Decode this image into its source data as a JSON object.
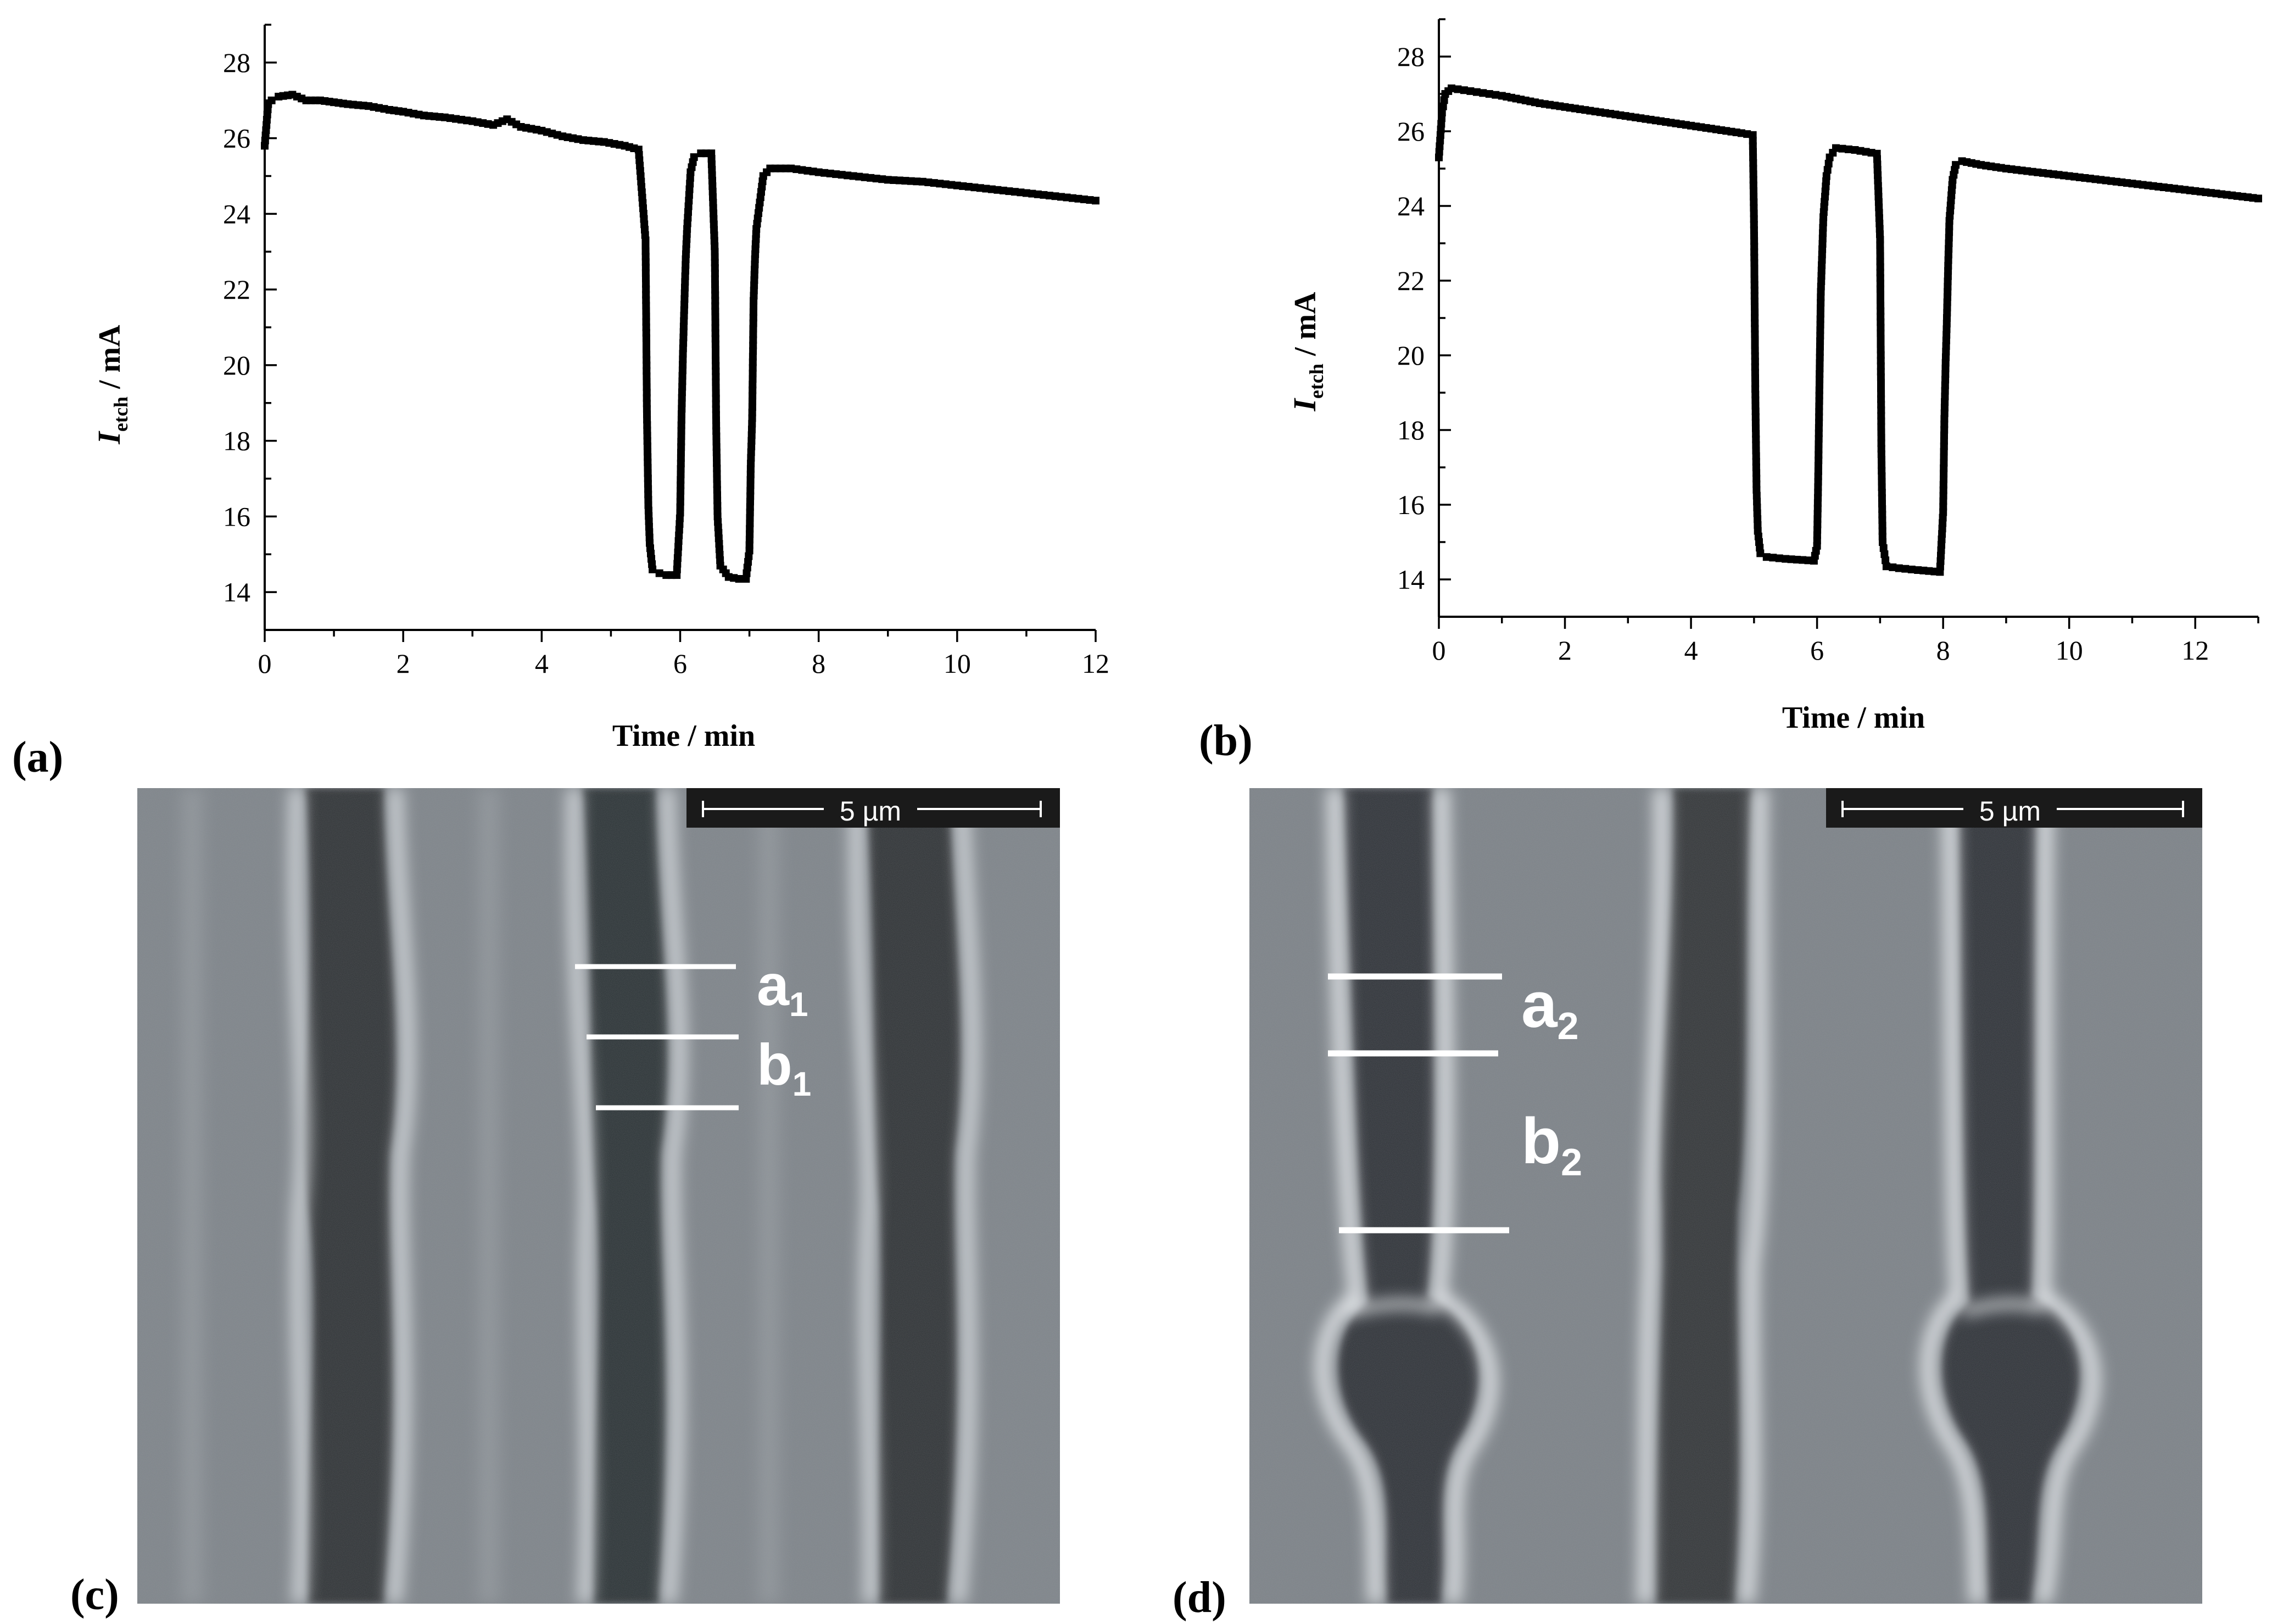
{
  "chart_data": [
    {
      "panel_label": "(a)",
      "type": "scatter",
      "xlabel": "Time / min",
      "ylabel_main": "I",
      "ylabel_sub": "etch",
      "ylabel_unit": " / mA",
      "xlim": [
        0,
        12
      ],
      "ylim": [
        13,
        29
      ],
      "xticks": [
        0,
        2,
        4,
        6,
        8,
        10,
        12
      ],
      "yticks": [
        14,
        16,
        18,
        20,
        22,
        24,
        26,
        28
      ],
      "series": [
        {
          "marker": "square",
          "points": [
            [
              0.0,
              25.8
            ],
            [
              0.05,
              26.9
            ],
            [
              0.1,
              27.0
            ],
            [
              0.2,
              27.1
            ],
            [
              0.4,
              27.15
            ],
            [
              0.6,
              27.0
            ],
            [
              0.8,
              27.0
            ],
            [
              1.0,
              26.95
            ],
            [
              1.2,
              26.9
            ],
            [
              1.5,
              26.85
            ],
            [
              1.8,
              26.75
            ],
            [
              2.0,
              26.7
            ],
            [
              2.3,
              26.6
            ],
            [
              2.6,
              26.55
            ],
            [
              3.0,
              26.45
            ],
            [
              3.3,
              26.35
            ],
            [
              3.5,
              26.5
            ],
            [
              3.7,
              26.3
            ],
            [
              4.0,
              26.2
            ],
            [
              4.3,
              26.05
            ],
            [
              4.6,
              25.95
            ],
            [
              4.9,
              25.9
            ],
            [
              5.2,
              25.8
            ],
            [
              5.4,
              25.7
            ],
            [
              5.5,
              23.3
            ],
            [
              5.52,
              18.7
            ],
            [
              5.54,
              16.3
            ],
            [
              5.56,
              15.3
            ],
            [
              5.6,
              14.6
            ],
            [
              5.7,
              14.5
            ],
            [
              5.8,
              14.45
            ],
            [
              5.95,
              14.45
            ],
            [
              6.0,
              16.1
            ],
            [
              6.02,
              18.7
            ],
            [
              6.04,
              20.3
            ],
            [
              6.06,
              21.6
            ],
            [
              6.08,
              22.8
            ],
            [
              6.1,
              23.6
            ],
            [
              6.15,
              25.1
            ],
            [
              6.2,
              25.5
            ],
            [
              6.3,
              25.6
            ],
            [
              6.45,
              25.6
            ],
            [
              6.5,
              23.0
            ],
            [
              6.52,
              18.4
            ],
            [
              6.54,
              16.0
            ],
            [
              6.58,
              14.7
            ],
            [
              6.7,
              14.4
            ],
            [
              6.85,
              14.35
            ],
            [
              6.95,
              14.35
            ],
            [
              7.0,
              15.1
            ],
            [
              7.02,
              17.4
            ],
            [
              7.04,
              18.6
            ],
            [
              7.06,
              21.7
            ],
            [
              7.08,
              22.8
            ],
            [
              7.1,
              23.6
            ],
            [
              7.15,
              24.3
            ],
            [
              7.2,
              25.0
            ],
            [
              7.3,
              25.2
            ],
            [
              7.6,
              25.2
            ],
            [
              8.0,
              25.1
            ],
            [
              8.5,
              25.0
            ],
            [
              9.0,
              24.9
            ],
            [
              9.5,
              24.85
            ],
            [
              10.0,
              24.75
            ],
            [
              10.5,
              24.65
            ],
            [
              11.0,
              24.55
            ],
            [
              11.5,
              24.45
            ],
            [
              12.0,
              24.35
            ]
          ]
        }
      ]
    },
    {
      "panel_label": "(b)",
      "type": "scatter",
      "xlabel": "Time / min",
      "ylabel_main": "I",
      "ylabel_sub": "etch",
      "ylabel_unit": " / mA",
      "xlim": [
        0,
        13
      ],
      "ylim": [
        13,
        29
      ],
      "xticks": [
        0,
        2,
        4,
        6,
        8,
        10,
        12
      ],
      "yticks": [
        14,
        16,
        18,
        20,
        22,
        24,
        26,
        28
      ],
      "series": [
        {
          "marker": "square",
          "points": [
            [
              0.0,
              25.3
            ],
            [
              0.05,
              26.5
            ],
            [
              0.1,
              27.0
            ],
            [
              0.2,
              27.15
            ],
            [
              0.4,
              27.1
            ],
            [
              0.6,
              27.05
            ],
            [
              0.8,
              27.0
            ],
            [
              1.0,
              26.95
            ],
            [
              1.3,
              26.85
            ],
            [
              1.6,
              26.75
            ],
            [
              2.0,
              26.65
            ],
            [
              2.4,
              26.55
            ],
            [
              2.8,
              26.45
            ],
            [
              3.2,
              26.35
            ],
            [
              3.6,
              26.25
            ],
            [
              4.0,
              26.15
            ],
            [
              4.4,
              26.05
            ],
            [
              4.8,
              25.95
            ],
            [
              4.98,
              25.9
            ],
            [
              5.0,
              23.5
            ],
            [
              5.02,
              19.1
            ],
            [
              5.04,
              16.4
            ],
            [
              5.06,
              15.3
            ],
            [
              5.1,
              14.7
            ],
            [
              5.2,
              14.6
            ],
            [
              5.5,
              14.55
            ],
            [
              5.95,
              14.5
            ],
            [
              6.0,
              14.9
            ],
            [
              6.02,
              16.9
            ],
            [
              6.04,
              19.5
            ],
            [
              6.06,
              21.7
            ],
            [
              6.08,
              22.7
            ],
            [
              6.1,
              23.7
            ],
            [
              6.15,
              24.8
            ],
            [
              6.2,
              25.3
            ],
            [
              6.3,
              25.55
            ],
            [
              6.6,
              25.5
            ],
            [
              6.95,
              25.4
            ],
            [
              7.0,
              23.1
            ],
            [
              7.02,
              17.5
            ],
            [
              7.04,
              15.0
            ],
            [
              7.1,
              14.35
            ],
            [
              7.3,
              14.3
            ],
            [
              7.6,
              14.25
            ],
            [
              7.95,
              14.2
            ],
            [
              8.0,
              15.8
            ],
            [
              8.02,
              18.3
            ],
            [
              8.04,
              19.8
            ],
            [
              8.06,
              21.0
            ],
            [
              8.08,
              22.4
            ],
            [
              8.1,
              23.6
            ],
            [
              8.15,
              24.7
            ],
            [
              8.2,
              25.1
            ],
            [
              8.3,
              25.2
            ],
            [
              8.6,
              25.1
            ],
            [
              9.0,
              25.0
            ],
            [
              9.5,
              24.9
            ],
            [
              10.0,
              24.8
            ],
            [
              10.5,
              24.7
            ],
            [
              11.0,
              24.6
            ],
            [
              11.5,
              24.5
            ],
            [
              12.0,
              24.4
            ],
            [
              12.5,
              24.3
            ],
            [
              13.0,
              24.2
            ]
          ]
        }
      ]
    }
  ],
  "micrographs": [
    {
      "panel_label": "(c)",
      "scale_bar": "5 µm",
      "labels": [
        {
          "base": "a",
          "sub": "1"
        },
        {
          "base": "b",
          "sub": "1"
        }
      ]
    },
    {
      "panel_label": "(d)",
      "scale_bar": "5 µm",
      "labels": [
        {
          "base": "a",
          "sub": "2"
        },
        {
          "base": "b",
          "sub": "2"
        }
      ]
    }
  ],
  "colors": {
    "data": "#000000",
    "sem_background": "#7d8389",
    "sem_dark_channel": "#2b2f33",
    "sem_bright_edge": "#e6ebef",
    "scale_bar_bg": "#1a1a1a",
    "annotation": "#ffffff"
  }
}
